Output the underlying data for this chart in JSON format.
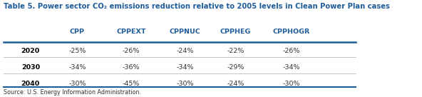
{
  "title": "Table 5. Power sector CO₂ emissions reduction relative to 2005 levels in Clean Power Plan cases",
  "title_color": "#1F5C99",
  "columns": [
    "CPP",
    "CPPEXT",
    "CPPNUC",
    "CPPHEG",
    "CPPHOGR"
  ],
  "rows": [
    {
      "year": "2020",
      "values": [
        "-25%",
        "-26%",
        "-24%",
        "-22%",
        "-26%"
      ]
    },
    {
      "year": "2030",
      "values": [
        "-34%",
        "-36%",
        "-34%",
        "-29%",
        "-34%"
      ]
    },
    {
      "year": "2040",
      "values": [
        "-30%",
        "-45%",
        "-30%",
        "-24%",
        "-30%"
      ]
    }
  ],
  "source": "Source: U.S. Energy Information Administration.",
  "header_line_color": "#1F5C99",
  "row_line_color": "#BBBBBB",
  "background_color": "#FFFFFF",
  "text_color": "#333333",
  "year_color": "#000000",
  "value_color": "#333333",
  "col_header_color": "#1F5C99",
  "figsize": [
    5.92,
    1.36
  ],
  "dpi": 100
}
